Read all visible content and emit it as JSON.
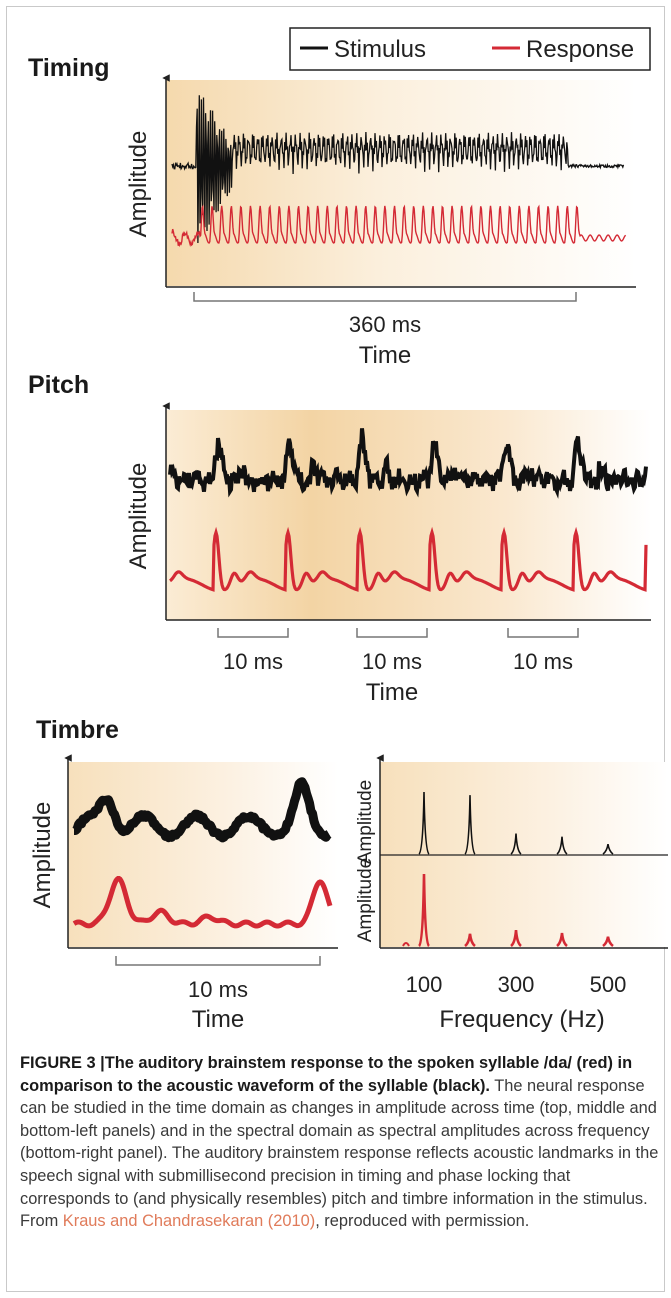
{
  "legend": {
    "stimulus_label": "Stimulus",
    "response_label": "Response",
    "stimulus_color": "#111111",
    "response_color": "#d42a35"
  },
  "panels": {
    "timing": {
      "title": "Timing",
      "ylabel": "Amplitude",
      "scale_label": "360 ms",
      "xlabel": "Time"
    },
    "pitch": {
      "title": "Pitch",
      "ylabel": "Amplitude",
      "scale_labels": [
        "10 ms",
        "10 ms",
        "10 ms"
      ],
      "xlabel": "Time"
    },
    "timbre": {
      "title": "Timbre",
      "time": {
        "ylabel": "Amplitude",
        "scale_label": "10 ms",
        "xlabel": "Time"
      },
      "spectrum": {
        "ylabel": "Amplitude",
        "xlabel": "Frequency (Hz)",
        "ticks": [
          "100",
          "300",
          "500"
        ]
      }
    }
  },
  "chart_data": {
    "type": "bar",
    "title": "",
    "xlabel": "Frequency (Hz)",
    "ylabel": "Amplitude",
    "categories": [
      100,
      200,
      300,
      400,
      500
    ],
    "series": [
      {
        "name": "Stimulus",
        "values": [
          1.0,
          0.95,
          0.33,
          0.28,
          0.16
        ]
      },
      {
        "name": "Response",
        "values": [
          1.0,
          0.17,
          0.22,
          0.18,
          0.13
        ]
      }
    ]
  },
  "caption": {
    "heading": "FIGURE 3 |The auditory brainstem response to the spoken syllable /da/ (red) in comparison to the acoustic waveform of the syllable (black).",
    "body": " The neural response can be studied in the time domain as changes in amplitude across time (top, middle and bottom-left panels) and in the spectral domain as spectral amplitudes across frequency (bottom-right panel). The auditory brainstem response reflects acoustic landmarks in the speech signal with submillisecond precision in timing and phase locking that corresponds to (and physically resembles) pitch and timbre information in the stimulus. From ",
    "citation": "Kraus and Chandrasekaran (2010)",
    "suffix": ", reproduced with permission."
  }
}
